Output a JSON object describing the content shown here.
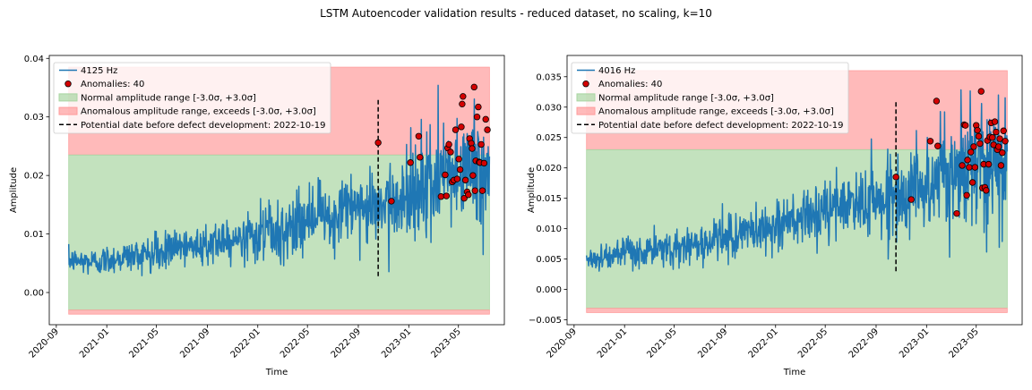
{
  "suptitle": "LSTM Autoencoder validation results - reduced dataset, no scaling, k=10",
  "colors": {
    "signal": "#1f77b4",
    "anomaly_face": "#d40000",
    "anomaly_edge": "#000000",
    "normal_fill": "#a9d5a2",
    "anomalous_fill": "#ff9c9c",
    "threshold_line": "#000000"
  },
  "chart_data": [
    {
      "type": "line",
      "title": "",
      "xlabel": "Time",
      "ylabel": "Amplitude",
      "x_range": [
        "2020-08-15",
        "2023-08-20"
      ],
      "ylim": [
        -0.0055,
        0.0405
      ],
      "yticks": [
        0.0,
        0.01,
        0.02,
        0.03,
        0.04
      ],
      "ytick_labels": [
        "0.00",
        "0.01",
        "0.02",
        "0.03",
        "0.04"
      ],
      "xticks": [
        "2020-09-01",
        "2021-01-01",
        "2021-05-01",
        "2021-09-01",
        "2022-01-01",
        "2022-05-01",
        "2022-09-01",
        "2023-01-01",
        "2023-05-01"
      ],
      "xtick_labels": [
        "2020-09",
        "2021-01",
        "2021-05",
        "2021-09",
        "2022-01",
        "2022-05",
        "2022-09",
        "2023-01",
        "2023-05"
      ],
      "data_start": "2020-10-01",
      "data_end": "2023-07-15",
      "series": [
        {
          "name": "4125 Hz",
          "kind": "line",
          "x": [
            "2020-10-01",
            "2020-12-01",
            "2021-02-01",
            "2021-04-01",
            "2021-06-01",
            "2021-08-01",
            "2021-10-01",
            "2021-12-01",
            "2022-02-01",
            "2022-04-01",
            "2022-06-01",
            "2022-08-01",
            "2022-10-01",
            "2022-12-01",
            "2023-02-01",
            "2023-04-01",
            "2023-06-01",
            "2023-07-15"
          ],
          "y": [
            0.0055,
            0.0052,
            0.006,
            0.0065,
            0.0072,
            0.008,
            0.009,
            0.0095,
            0.0105,
            0.0115,
            0.013,
            0.014,
            0.015,
            0.016,
            0.0175,
            0.019,
            0.0215,
            0.021
          ],
          "noise": [
            0.001,
            0.0012,
            0.0013,
            0.0014,
            0.0016,
            0.0018,
            0.0019,
            0.002,
            0.0022,
            0.0024,
            0.0026,
            0.0028,
            0.003,
            0.0035,
            0.0045,
            0.005,
            0.0055,
            0.005
          ]
        },
        {
          "name": "Anomalies: 40",
          "kind": "scatter",
          "count": 40,
          "x": [
            "2022-10-19",
            "2022-11-20",
            "2023-01-05",
            "2023-01-25",
            "2023-01-28",
            "2023-03-20",
            "2023-03-30",
            "2023-04-02",
            "2023-04-05",
            "2023-04-08",
            "2023-04-12",
            "2023-04-16",
            "2023-04-20",
            "2023-04-24",
            "2023-04-28",
            "2023-05-02",
            "2023-05-05",
            "2023-05-08",
            "2023-05-10",
            "2023-05-12",
            "2023-05-15",
            "2023-05-18",
            "2023-05-22",
            "2023-05-25",
            "2023-05-28",
            "2023-06-01",
            "2023-06-03",
            "2023-06-05",
            "2023-06-08",
            "2023-06-10",
            "2023-06-12",
            "2023-06-15",
            "2023-06-18",
            "2023-06-20",
            "2023-06-22",
            "2023-06-25",
            "2023-06-28",
            "2023-07-02",
            "2023-07-06",
            "2023-07-10"
          ],
          "y": [
            0.0256,
            0.0156,
            0.0222,
            0.0267,
            0.0231,
            0.0164,
            0.0201,
            0.0165,
            0.0247,
            0.0253,
            0.024,
            0.0189,
            0.0192,
            0.0278,
            0.0194,
            0.0228,
            0.021,
            0.0283,
            0.0322,
            0.0335,
            0.0161,
            0.0192,
            0.0172,
            0.0167,
            0.0263,
            0.0255,
            0.0246,
            0.02,
            0.0351,
            0.0174,
            0.0225,
            0.03,
            0.0317,
            0.0223,
            0.0222,
            0.0253,
            0.0174,
            0.0221,
            0.0296,
            0.0278
          ]
        }
      ],
      "bands": {
        "normal": [
          -0.003,
          0.0235
        ],
        "anomalous_upper": [
          0.0235,
          0.0385
        ],
        "anomalous_lower": [
          -0.0037,
          -0.003
        ],
        "x_span": [
          "2020-10-01",
          "2023-07-15"
        ]
      },
      "vline": {
        "date": "2022-10-19",
        "ymin": 0.0028,
        "ymax": 0.033
      },
      "legend": {
        "placement": "upper left",
        "entries": [
          "4125 Hz",
          "Anomalies: 40",
          "Normal amplitude range [-3.0σ, +3.0σ]",
          "Anomalous amplitude range, exceeds [-3.0σ, +3.0σ]",
          "Potential date before defect development: 2022-10-19"
        ]
      }
    },
    {
      "type": "line",
      "title": "",
      "xlabel": "Time",
      "ylabel": "Amplitude",
      "x_range": [
        "2020-08-15",
        "2023-08-20"
      ],
      "ylim": [
        -0.0058,
        0.0385
      ],
      "yticks": [
        -0.005,
        0.0,
        0.005,
        0.01,
        0.015,
        0.02,
        0.025,
        0.03,
        0.035
      ],
      "ytick_labels": [
        "−0.005",
        "0.000",
        "0.005",
        "0.010",
        "0.015",
        "0.020",
        "0.025",
        "0.030",
        "0.035"
      ],
      "xticks": [
        "2020-09-01",
        "2021-01-01",
        "2021-05-01",
        "2021-09-01",
        "2022-01-01",
        "2022-05-01",
        "2022-09-01",
        "2023-01-01",
        "2023-05-01"
      ],
      "xtick_labels": [
        "2020-09",
        "2021-01",
        "2021-05",
        "2021-09",
        "2022-01",
        "2022-05",
        "2022-09",
        "2023-01",
        "2023-05"
      ],
      "data_start": "2020-10-01",
      "data_end": "2023-07-15",
      "series": [
        {
          "name": "4016 Hz",
          "kind": "line",
          "x": [
            "2020-10-01",
            "2020-12-01",
            "2021-02-01",
            "2021-04-01",
            "2021-06-01",
            "2021-08-01",
            "2021-10-01",
            "2021-12-01",
            "2022-02-01",
            "2022-04-01",
            "2022-06-01",
            "2022-08-01",
            "2022-10-01",
            "2022-12-01",
            "2023-02-01",
            "2023-04-01",
            "2023-06-01",
            "2023-07-15"
          ],
          "y": [
            0.005,
            0.0055,
            0.006,
            0.0065,
            0.0072,
            0.008,
            0.009,
            0.01,
            0.011,
            0.012,
            0.0135,
            0.0145,
            0.015,
            0.0165,
            0.018,
            0.02,
            0.022,
            0.0215
          ],
          "noise": [
            0.001,
            0.0012,
            0.0013,
            0.0014,
            0.0016,
            0.0018,
            0.0019,
            0.002,
            0.0022,
            0.0024,
            0.0026,
            0.0028,
            0.003,
            0.0035,
            0.0045,
            0.005,
            0.0055,
            0.005
          ]
        },
        {
          "name": "Anomalies: 40",
          "kind": "scatter",
          "count": 40,
          "x": [
            "2022-10-19",
            "2022-11-25",
            "2023-01-10",
            "2023-01-25",
            "2023-01-28",
            "2023-03-15",
            "2023-03-28",
            "2023-04-02",
            "2023-04-05",
            "2023-04-08",
            "2023-04-10",
            "2023-04-14",
            "2023-04-18",
            "2023-04-22",
            "2023-04-25",
            "2023-04-28",
            "2023-05-01",
            "2023-05-04",
            "2023-05-07",
            "2023-05-10",
            "2023-05-13",
            "2023-05-16",
            "2023-05-19",
            "2023-05-22",
            "2023-05-25",
            "2023-05-28",
            "2023-05-31",
            "2023-06-03",
            "2023-06-06",
            "2023-06-09",
            "2023-06-12",
            "2023-06-15",
            "2023-06-18",
            "2023-06-21",
            "2023-06-24",
            "2023-06-27",
            "2023-06-30",
            "2023-07-03",
            "2023-07-06",
            "2023-07-10"
          ],
          "y": [
            0.0185,
            0.0148,
            0.0244,
            0.031,
            0.0236,
            0.0125,
            0.0204,
            0.0271,
            0.027,
            0.0155,
            0.0213,
            0.0201,
            0.0226,
            0.0176,
            0.0235,
            0.0201,
            0.027,
            0.0262,
            0.0252,
            0.024,
            0.0326,
            0.0167,
            0.0206,
            0.0168,
            0.0163,
            0.0245,
            0.0206,
            0.0251,
            0.0274,
            0.025,
            0.0238,
            0.0276,
            0.0259,
            0.023,
            0.0235,
            0.0248,
            0.0204,
            0.0225,
            0.0261,
            0.0244
          ]
        }
      ],
      "bands": {
        "normal": [
          -0.0031,
          0.023
        ],
        "anomalous_upper": [
          0.023,
          0.036
        ],
        "anomalous_lower": [
          -0.0038,
          -0.0031
        ],
        "x_span": [
          "2020-10-01",
          "2023-07-15"
        ]
      },
      "vline": {
        "date": "2022-10-19",
        "ymin": 0.003,
        "ymax": 0.031
      },
      "legend": {
        "placement": "upper left",
        "entries": [
          "4016 Hz",
          "Anomalies: 40",
          "Normal amplitude range [-3.0σ, +3.0σ]",
          "Anomalous amplitude range, exceeds [-3.0σ, +3.0σ]",
          "Potential date before defect development: 2022-10-19"
        ]
      }
    }
  ]
}
